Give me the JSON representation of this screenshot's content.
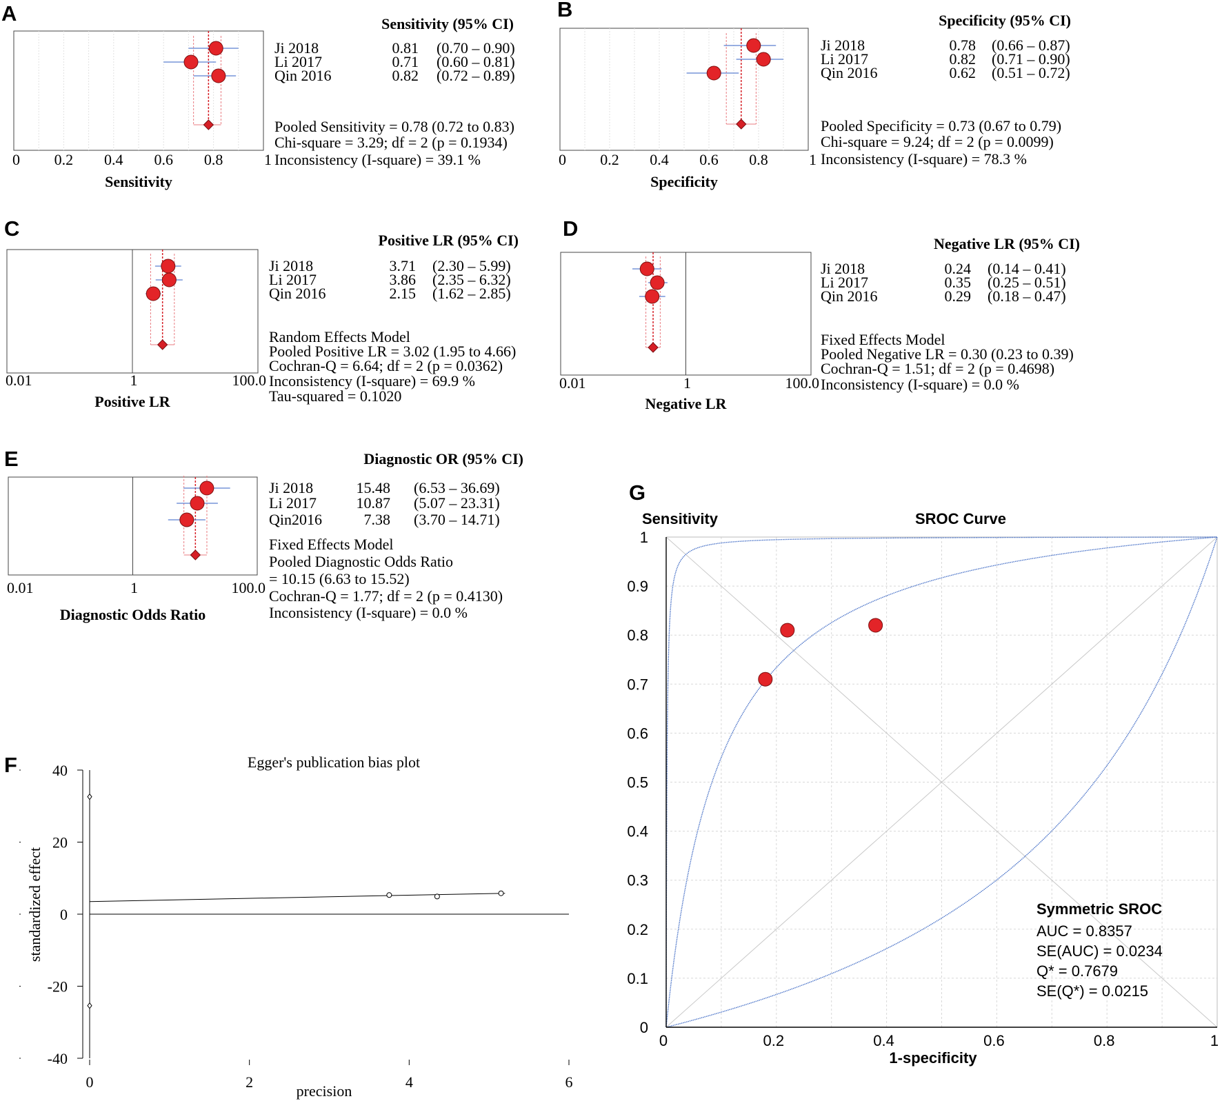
{
  "panels": {
    "A": "A",
    "B": "B",
    "C": "C",
    "D": "D",
    "E": "E",
    "F": "F",
    "G": "G"
  },
  "colors": {
    "point_fill": "#e32428",
    "ci_line": "#5b7fd1",
    "pooled_ci": "#e97b80",
    "curve": "#4a73c8",
    "grid": "#d8d8d8"
  },
  "chart_data": [
    {
      "id": "A",
      "type": "forest",
      "scale": "linear",
      "xlim": [
        0,
        1
      ],
      "xticks": [
        "0",
        "0.2",
        "0.4",
        "0.6",
        "0.8",
        "1"
      ],
      "xtick_values": [
        0,
        0.2,
        0.4,
        0.6,
        0.8,
        1
      ],
      "xlabel": "Sensitivity",
      "header": "Sensitivity (95% CI)",
      "studies": [
        {
          "name": "Ji 2018",
          "est": 0.81,
          "lo": 0.7,
          "hi": 0.9,
          "est_text": "0.81",
          "ci_text": "(0.70 – 0.90)"
        },
        {
          "name": "Li 2017",
          "est": 0.71,
          "lo": 0.6,
          "hi": 0.81,
          "est_text": "0.71",
          "ci_text": "(0.60 – 0.81)"
        },
        {
          "name": "Qin 2016",
          "est": 0.82,
          "lo": 0.72,
          "hi": 0.89,
          "est_text": "0.82",
          "ci_text": "(0.72 – 0.89)"
        }
      ],
      "pooled": {
        "est": 0.78,
        "lo": 0.72,
        "hi": 0.83
      },
      "summary": [
        "Pooled Sensitivity = 0.78 (0.72 to 0.83)",
        "Chi-square = 3.29; df =  2 (p = 0.1934)",
        "Inconsistency (I-square) = 39.1 %"
      ]
    },
    {
      "id": "B",
      "type": "forest",
      "scale": "linear",
      "xlim": [
        0,
        1
      ],
      "xticks": [
        "0",
        "0.2",
        "0.4",
        "0.6",
        "0.8",
        "1"
      ],
      "xtick_values": [
        0,
        0.2,
        0.4,
        0.6,
        0.8,
        1
      ],
      "xlabel": "Specificity",
      "header": "Specificity (95% CI)",
      "studies": [
        {
          "name": "Ji 2018",
          "est": 0.78,
          "lo": 0.66,
          "hi": 0.87,
          "est_text": "0.78",
          "ci_text": "(0.66 – 0.87)"
        },
        {
          "name": "Li 2017",
          "est": 0.82,
          "lo": 0.71,
          "hi": 0.9,
          "est_text": "0.82",
          "ci_text": "(0.71 – 0.90)"
        },
        {
          "name": "Qin 2016",
          "est": 0.62,
          "lo": 0.51,
          "hi": 0.72,
          "est_text": "0.62",
          "ci_text": "(0.51 – 0.72)"
        }
      ],
      "pooled": {
        "est": 0.73,
        "lo": 0.67,
        "hi": 0.79
      },
      "summary": [
        "Pooled Specificity = 0.73 (0.67 to 0.79)",
        "Chi-square = 9.24; df =  2 (p = 0.0099)",
        "Inconsistency (I-square) = 78.3 %"
      ]
    },
    {
      "id": "C",
      "type": "forest",
      "scale": "log",
      "xlim": [
        0.01,
        100
      ],
      "xticks": [
        "0.01",
        "1",
        "100.0"
      ],
      "xtick_values": [
        0.01,
        1,
        100
      ],
      "xlabel": "Positive LR",
      "header": "Positive LR (95% CI)",
      "studies": [
        {
          "name": "Ji 2018",
          "est": 3.71,
          "lo": 2.3,
          "hi": 5.99,
          "est_text": "3.71",
          "ci_text": "(2.30 – 5.99)"
        },
        {
          "name": "Li 2017",
          "est": 3.86,
          "lo": 2.35,
          "hi": 6.32,
          "est_text": "3.86",
          "ci_text": "(2.35 – 6.32)"
        },
        {
          "name": "Qin 2016",
          "est": 2.15,
          "lo": 1.62,
          "hi": 2.85,
          "est_text": "2.15",
          "ci_text": "(1.62 – 2.85)"
        }
      ],
      "pooled": {
        "est": 3.02,
        "lo": 1.95,
        "hi": 4.66
      },
      "summary": [
        "Random Effects Model",
        "Pooled Positive LR = 3.02 (1.95 to 4.66)",
        "Cochran-Q = 6.64; df =  2 (p = 0.0362)",
        "Inconsistency (I-square) = 69.9 %",
        "Tau-squared = 0.1020"
      ]
    },
    {
      "id": "D",
      "type": "forest",
      "scale": "log",
      "xlim": [
        0.01,
        100
      ],
      "xticks": [
        "0.01",
        "1",
        "100.0"
      ],
      "xtick_values": [
        0.01,
        1,
        100
      ],
      "xlabel": "Negative LR",
      "header": "Negative LR (95% CI)",
      "studies": [
        {
          "name": "Ji 2018",
          "est": 0.24,
          "lo": 0.14,
          "hi": 0.41,
          "est_text": "0.24",
          "ci_text": "(0.14 – 0.41)"
        },
        {
          "name": "Li 2017",
          "est": 0.35,
          "lo": 0.25,
          "hi": 0.51,
          "est_text": "0.35",
          "ci_text": "(0.25 – 0.51)"
        },
        {
          "name": "Qin 2016",
          "est": 0.29,
          "lo": 0.18,
          "hi": 0.47,
          "est_text": "0.29",
          "ci_text": "(0.18 – 0.47)"
        }
      ],
      "pooled": {
        "est": 0.3,
        "lo": 0.23,
        "hi": 0.39
      },
      "summary": [
        "Fixed Effects Model",
        "Pooled Negative LR = 0.30 (0.23 to 0.39)",
        "Cochran-Q = 1.51; df =  2 (p = 0.4698)",
        "Inconsistency (I-square) = 0.0 %"
      ]
    },
    {
      "id": "E",
      "type": "forest",
      "scale": "log",
      "xlim": [
        0.01,
        100
      ],
      "xticks": [
        "0.01",
        "1",
        "100.0"
      ],
      "xtick_values": [
        0.01,
        1,
        100
      ],
      "xlabel": "Diagnostic Odds Ratio",
      "header": "Diagnostic OR (95% CI)",
      "studies": [
        {
          "name": "Ji 2018",
          "est": 15.48,
          "lo": 6.53,
          "hi": 36.69,
          "est_text": "15.48",
          "ci_text": "(6.53 – 36.69)"
        },
        {
          "name": "Li 2017",
          "est": 10.87,
          "lo": 5.07,
          "hi": 23.31,
          "est_text": "10.87",
          "ci_text": "(5.07 – 23.31)"
        },
        {
          "name": "Qin2016",
          "est": 7.38,
          "lo": 3.7,
          "hi": 14.71,
          "est_text": "7.38",
          "ci_text": "(3.70 – 14.71)"
        }
      ],
      "pooled": {
        "est": 10.15,
        "lo": 6.63,
        "hi": 15.52
      },
      "summary": [
        "Fixed Effects Model",
        "Pooled Diagnostic Odds Ratio",
        "= 10.15 (6.63 to 15.52)",
        "Cochran-Q = 1.77; df =  2 (p = 0.4130)",
        "Inconsistency (I-square) = 0.0 %"
      ]
    },
    {
      "id": "F",
      "type": "scatter",
      "title": "Egger's publication bias plot",
      "xlabel": "precision",
      "ylabel": "standardized effect",
      "xlim": [
        0,
        6
      ],
      "ylim": [
        -40,
        40
      ],
      "xticks": [
        "0",
        "2",
        "4",
        "6"
      ],
      "xtick_values": [
        0,
        2,
        4,
        6
      ],
      "yticks": [
        "40",
        "20",
        "0",
        "-20",
        "-40"
      ],
      "ytick_values": [
        40,
        20,
        0,
        -20,
        -40
      ],
      "points": [
        {
          "x": 3.75,
          "y": 5.3
        },
        {
          "x": 4.35,
          "y": 4.9
        },
        {
          "x": 5.15,
          "y": 5.8
        }
      ],
      "ci_marks": [
        {
          "x": 0,
          "y": 32.6
        },
        {
          "x": 0,
          "y": -25.4
        }
      ],
      "regression": {
        "x0": 0,
        "y0": 3.5,
        "x1": 5.2,
        "y1": 5.8
      }
    },
    {
      "id": "G",
      "type": "sroc",
      "title": "SROC Curve",
      "ylabel": "Sensitivity",
      "xlabel": "1-specificity",
      "xlim": [
        0,
        1
      ],
      "ylim": [
        0,
        1
      ],
      "xticks": [
        "0",
        "0.2",
        "0.4",
        "0.6",
        "0.8",
        "1"
      ],
      "xtick_values": [
        0,
        0.2,
        0.4,
        0.6,
        0.8,
        1
      ],
      "yticks": [
        "1",
        "0.9",
        "0.8",
        "0.7",
        "0.6",
        "0.5",
        "0.4",
        "0.3",
        "0.2",
        "0.1",
        "0"
      ],
      "ytick_values": [
        1,
        0.9,
        0.8,
        0.7,
        0.6,
        0.5,
        0.4,
        0.3,
        0.2,
        0.1,
        0
      ],
      "points": [
        {
          "x": 0.18,
          "y": 0.71
        },
        {
          "x": 0.22,
          "y": 0.81
        },
        {
          "x": 0.38,
          "y": 0.82
        }
      ],
      "auc": 0.8357,
      "legend_title": "Symmetric SROC",
      "legend": [
        "AUC = 0.8357",
        "SE(AUC) = 0.0234",
        "Q* = 0.7679",
        "SE(Q*) = 0.0215"
      ]
    }
  ]
}
